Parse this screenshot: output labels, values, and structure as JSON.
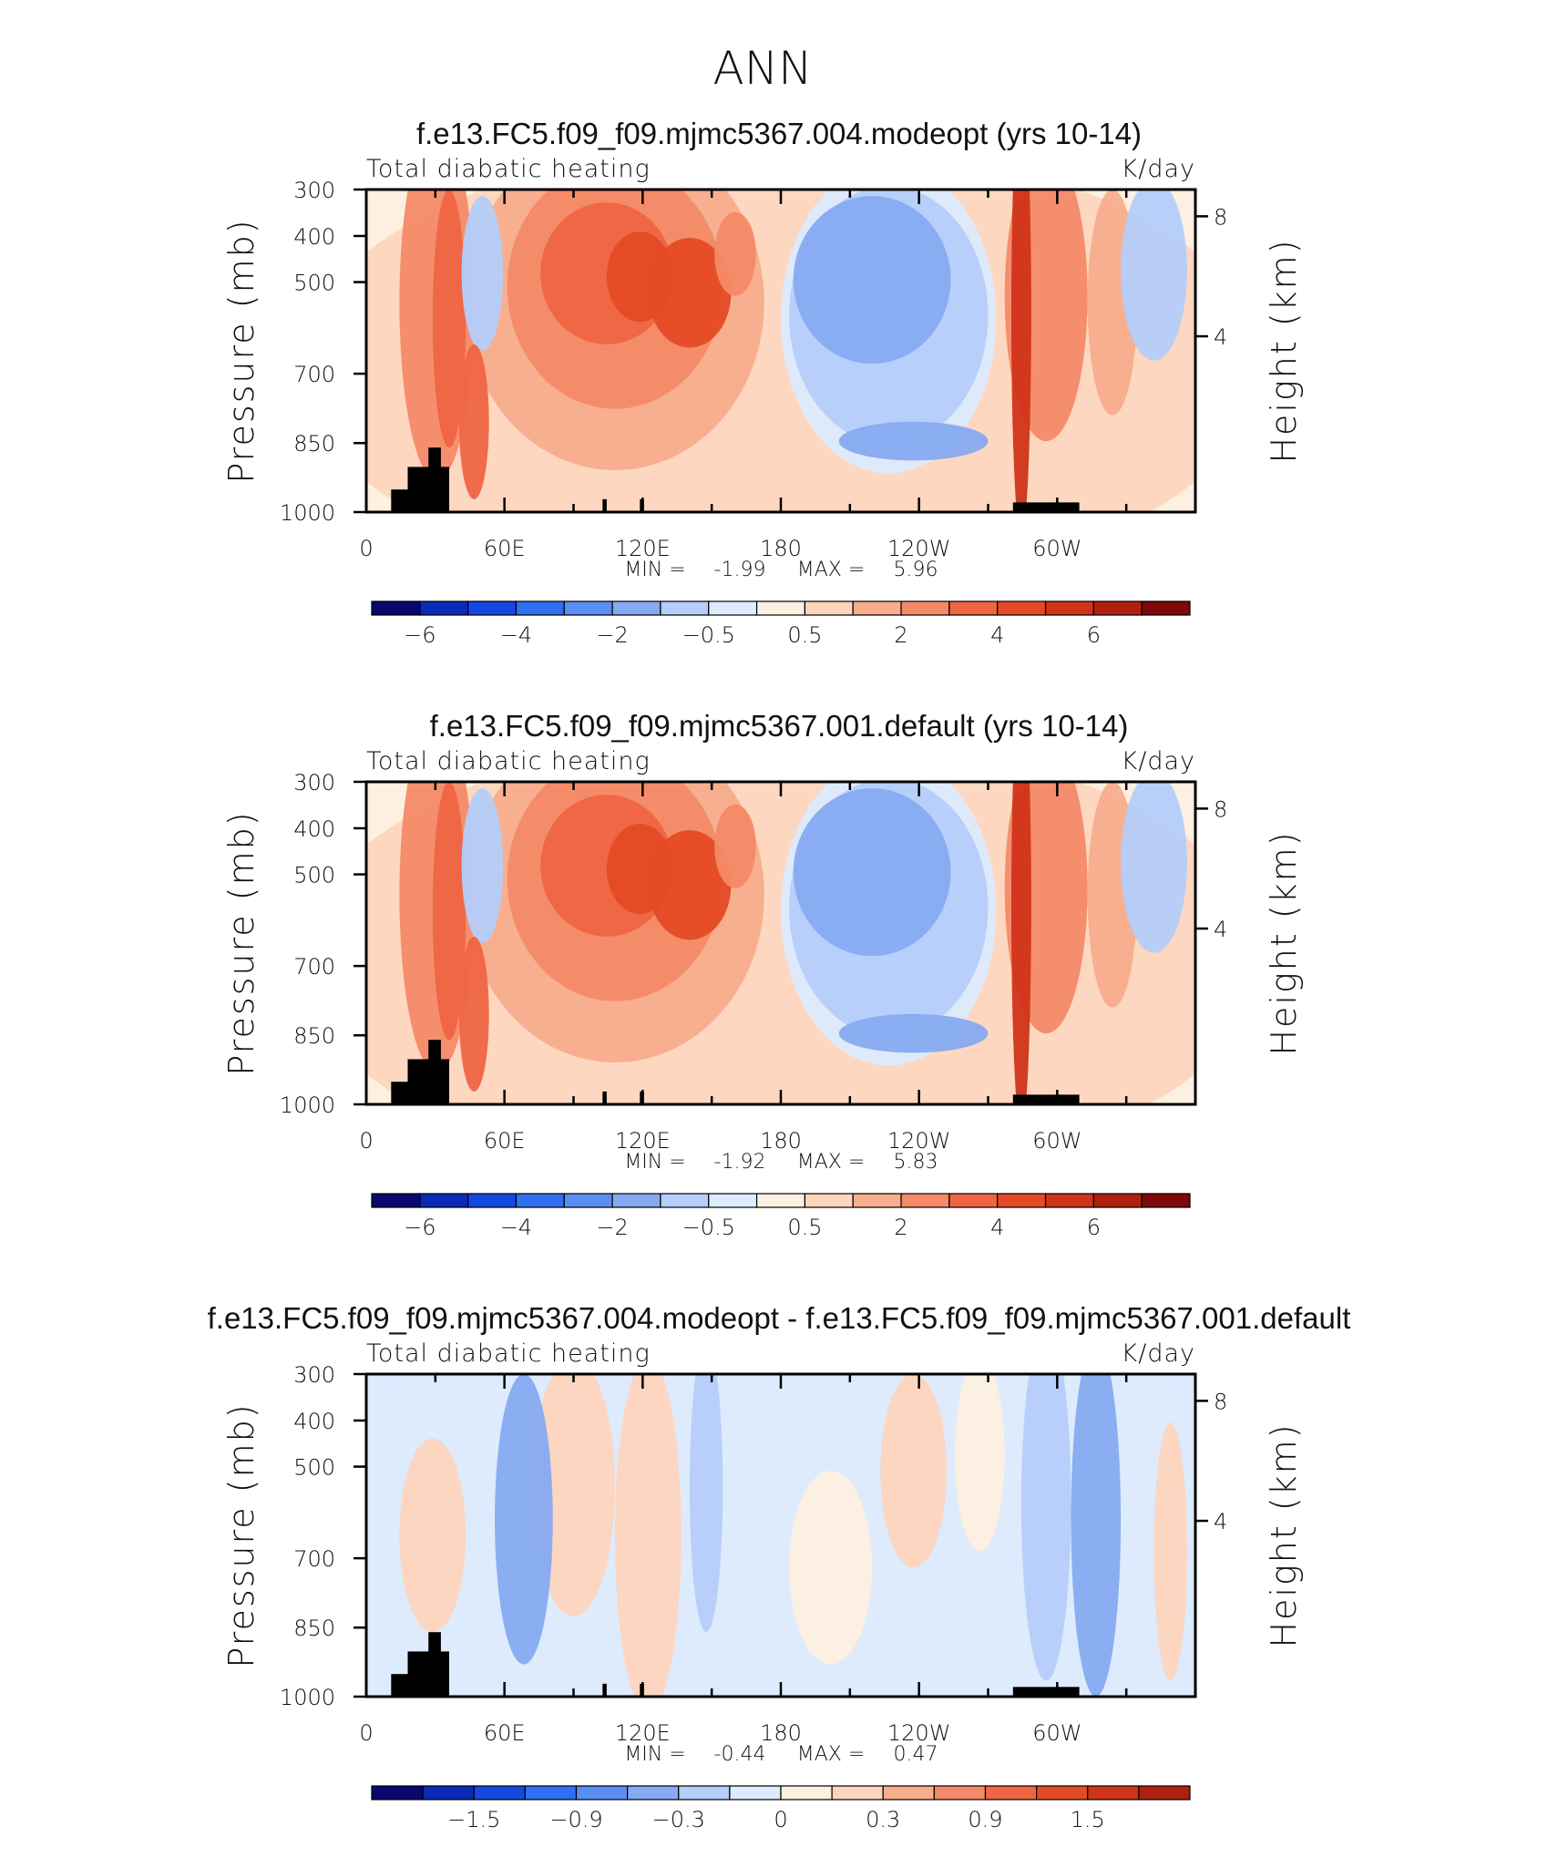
{
  "page": {
    "title": "ANN"
  },
  "chart_data": [
    {
      "type": "heatmap",
      "title": "f.e13.FC5.f09_f09.mjmc5367.004.modeopt (yrs 10-14)",
      "left_label": "Total diabatic heating",
      "right_label": "K/day",
      "ylabel": "Pressure (mb)",
      "ylabel_right": "Height (km)",
      "x_ticks": [
        "0",
        "60E",
        "120E",
        "180",
        "120W",
        "60W"
      ],
      "y_ticks": [
        "300",
        "400",
        "500",
        "700",
        "850",
        "1000"
      ],
      "y_ticks_right": [
        "8",
        "4"
      ],
      "stats": {
        "min_label": "MIN =",
        "min_value": "-1.99",
        "max_label": "MAX =",
        "max_value": "5.96"
      },
      "colorbar_labels": [
        "−6",
        "−4",
        "−2",
        "−0.5",
        "0.5",
        "2",
        "4",
        "6"
      ]
    },
    {
      "type": "heatmap",
      "title": "f.e13.FC5.f09_f09.mjmc5367.001.default (yrs 10-14)",
      "left_label": "Total diabatic heating",
      "right_label": "K/day",
      "ylabel": "Pressure (mb)",
      "ylabel_right": "Height (km)",
      "x_ticks": [
        "0",
        "60E",
        "120E",
        "180",
        "120W",
        "60W"
      ],
      "y_ticks": [
        "300",
        "400",
        "500",
        "700",
        "850",
        "1000"
      ],
      "y_ticks_right": [
        "8",
        "4"
      ],
      "stats": {
        "min_label": "MIN =",
        "min_value": "-1.92",
        "max_label": "MAX =",
        "max_value": "5.83"
      },
      "colorbar_labels": [
        "−6",
        "−4",
        "−2",
        "−0.5",
        "0.5",
        "2",
        "4",
        "6"
      ]
    },
    {
      "type": "heatmap",
      "title": "f.e13.FC5.f09_f09.mjmc5367.004.modeopt - f.e13.FC5.f09_f09.mjmc5367.001.default",
      "left_label": "Total diabatic heating",
      "right_label": "K/day",
      "ylabel": "Pressure (mb)",
      "ylabel_right": "Height (km)",
      "x_ticks": [
        "0",
        "60E",
        "120E",
        "180",
        "120W",
        "60W"
      ],
      "y_ticks": [
        "300",
        "400",
        "500",
        "700",
        "850",
        "1000"
      ],
      "y_ticks_right": [
        "8",
        "4"
      ],
      "stats": {
        "min_label": "MIN =",
        "min_value": "-0.44",
        "max_label": "MAX =",
        "max_value": "0.47"
      },
      "colorbar_labels": [
        "−1.5",
        "−0.9",
        "−0.3",
        "0",
        "0.3",
        "0.9",
        "1.5"
      ]
    }
  ],
  "colors": {
    "palette": [
      "#08086e",
      "#0a2ab8",
      "#1448e0",
      "#2f6ff0",
      "#5a8ef2",
      "#86aaf1",
      "#b4cdfa",
      "#dcebfd",
      "#fdf0e0",
      "#fdd5bd",
      "#f8ad8c",
      "#f48a67",
      "#ef6543",
      "#e54a26",
      "#cf3419",
      "#b02010",
      "#800808"
    ]
  }
}
